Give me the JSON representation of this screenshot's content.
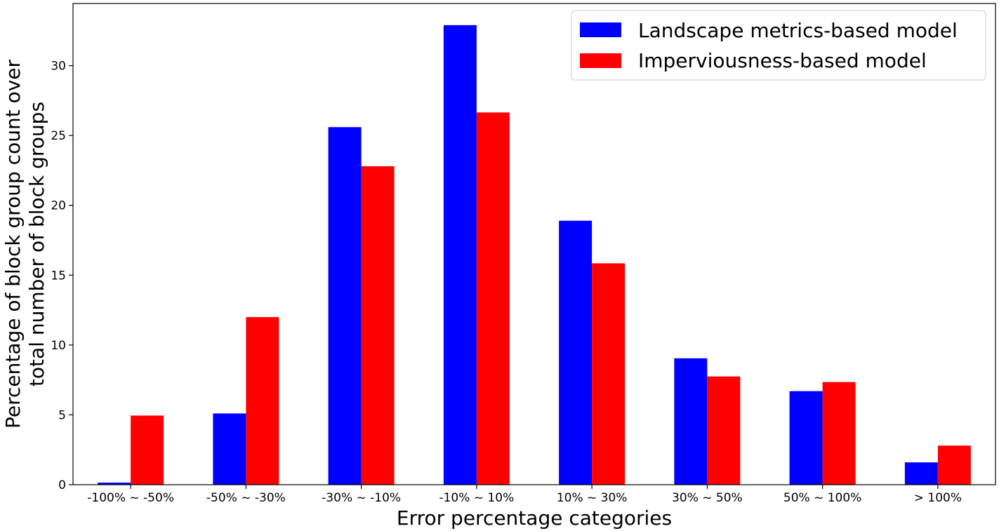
{
  "chart_data": {
    "type": "bar",
    "title": "",
    "xlabel": "Error percentage categories",
    "ylabel": [
      "Percentage of block group count over",
      "total number of block groups"
    ],
    "categories": [
      "-100% ~ -50%",
      "-50% ~ -30%",
      "-30% ~ -10%",
      "-10% ~ 10%",
      "10% ~ 30%",
      "30% ~ 50%",
      "50% ~ 100%",
      "> 100%"
    ],
    "series": [
      {
        "name": "Landscape metrics-based model",
        "color": "#0000ff",
        "values": [
          0.15,
          5.1,
          25.6,
          32.9,
          18.9,
          9.05,
          6.7,
          1.6
        ]
      },
      {
        "name": "Imperviousness-based model",
        "color": "#ff0000",
        "values": [
          4.95,
          12.0,
          22.8,
          26.65,
          15.85,
          7.75,
          7.35,
          2.8
        ]
      }
    ],
    "yticks": [
      0,
      5,
      10,
      15,
      20,
      25,
      30
    ],
    "ylim": [
      0,
      34.45
    ],
    "grid": false,
    "legend_position": "top-right"
  }
}
